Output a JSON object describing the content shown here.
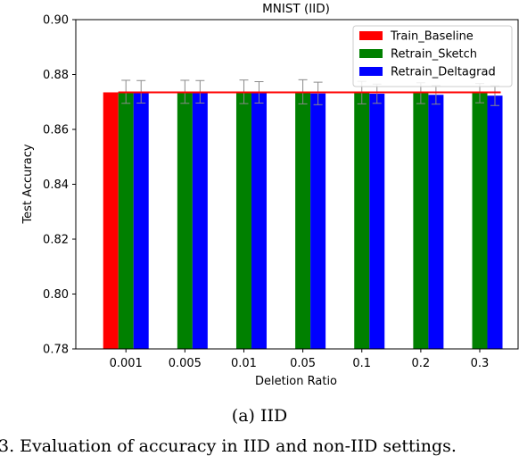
{
  "chart_data": {
    "type": "bar",
    "title": "MNIST (IID)",
    "xlabel": "Deletion Ratio",
    "ylabel": "Test Accuracy",
    "ylim": [
      0.78,
      0.9
    ],
    "yticks": [
      "0.78",
      "0.80",
      "0.82",
      "0.84",
      "0.86",
      "0.88",
      "0.90"
    ],
    "categories": [
      "0.001",
      "0.005",
      "0.01",
      "0.05",
      "0.1",
      "0.2",
      "0.3"
    ],
    "legend_position": "top-right",
    "baseline": {
      "name": "Train_Baseline",
      "value": 0.8735,
      "color": "#ff0000"
    },
    "series": [
      {
        "name": "Retrain_Sketch",
        "color": "#008000",
        "values": [
          0.8737,
          0.8737,
          0.8737,
          0.8737,
          0.8734,
          0.8732,
          0.8732
        ],
        "errors": [
          0.0042,
          0.0042,
          0.0043,
          0.0044,
          0.0041,
          0.0038,
          0.0035
        ]
      },
      {
        "name": "Retrain_Deltagrad",
        "color": "#0000ff",
        "values": [
          0.8737,
          0.8737,
          0.8735,
          0.8731,
          0.873,
          0.8726,
          0.8723
        ],
        "errors": [
          0.0041,
          0.0041,
          0.0039,
          0.0041,
          0.0035,
          0.0034,
          0.0036
        ]
      }
    ]
  },
  "caption": "(a) IID",
  "footer_text": "3.  Evaluation of accuracy in IID and non-IID settings."
}
